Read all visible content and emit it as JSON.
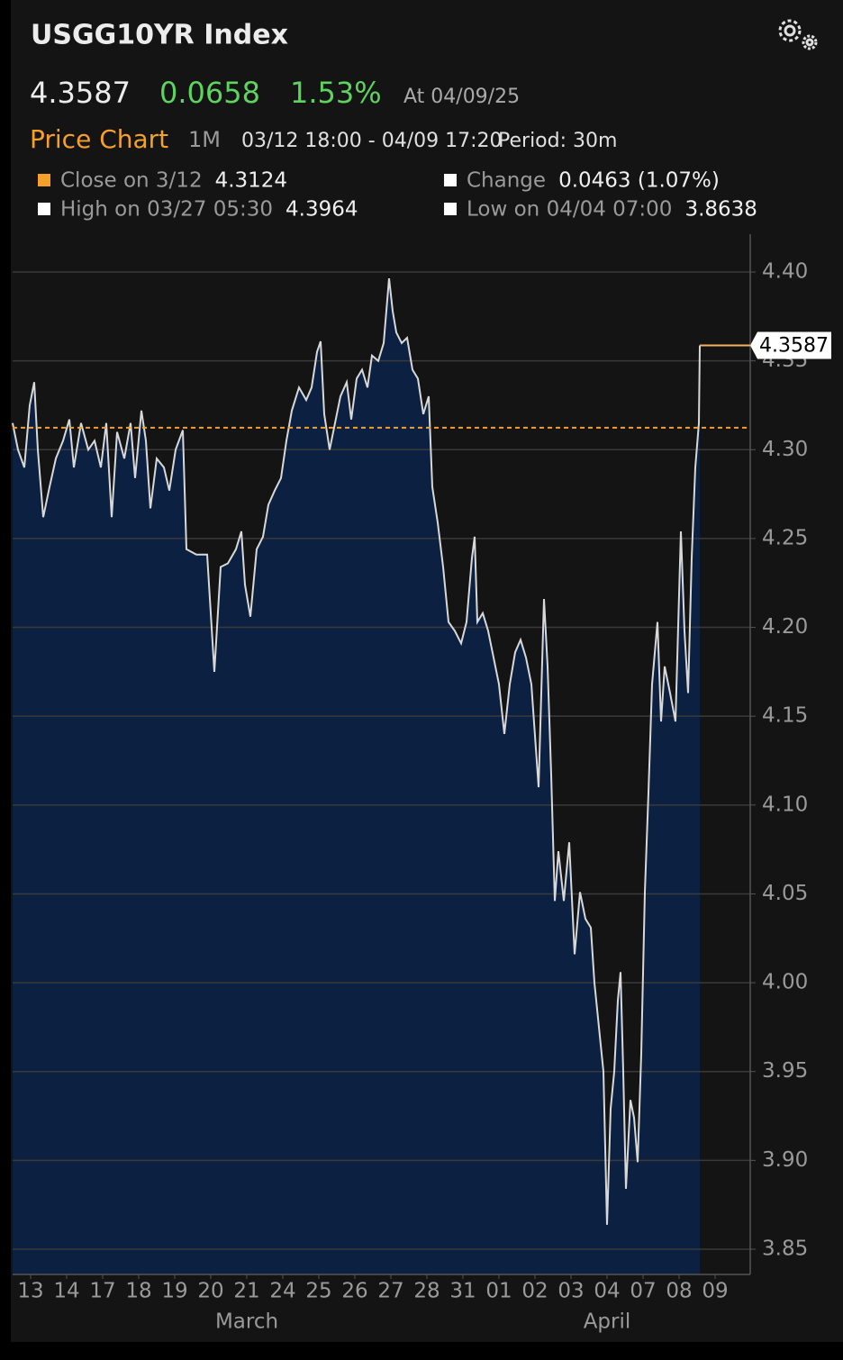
{
  "header": {
    "title": "USGG10YR Index",
    "last": 4.3587,
    "change": 0.0658,
    "change_pct": "1.53%",
    "as_of": "At 04/09/25"
  },
  "toolbar": {
    "label": "Price Chart",
    "range": "1M",
    "window": "03/12 18:00 - 04/09 17:20",
    "period": "Period: 30m"
  },
  "chart_data": {
    "type": "area",
    "color": "#d8d8d8",
    "fill": "#0c2142",
    "x": [
      -0.5,
      -0.35,
      -0.175,
      -0.025,
      0.1,
      0.2,
      0.35,
      0.525,
      0.7,
      0.9,
      1.075,
      1.2,
      1.4,
      1.6,
      1.775,
      1.95,
      2.1,
      2.25,
      2.4,
      2.6,
      2.775,
      2.9,
      3.075,
      3.2,
      3.325,
      3.5,
      3.7,
      3.85,
      4.025,
      4.225,
      4.325,
      4.6,
      4.9,
      5.0,
      5.1,
      5.275,
      5.475,
      5.7,
      5.85,
      5.95,
      6.1,
      6.275,
      6.45,
      6.6,
      6.775,
      6.95,
      7.1,
      7.25,
      7.45,
      7.65,
      7.8,
      7.95,
      8.05,
      8.15,
      8.3,
      8.45,
      8.6,
      8.775,
      8.9,
      9.05,
      9.2,
      9.35,
      9.475,
      9.65,
      9.8,
      9.95,
      10.05,
      10.15,
      10.3,
      10.45,
      10.6,
      10.75,
      10.9,
      11.05,
      11.15,
      11.3,
      11.45,
      11.6,
      11.775,
      11.95,
      12.1,
      12.25,
      12.325,
      12.4,
      12.55,
      12.7,
      12.85,
      13.0,
      13.15,
      13.3,
      13.45,
      13.6,
      13.75,
      13.9,
      14.1,
      14.25,
      14.35,
      14.45,
      14.55,
      14.65,
      14.8,
      14.95,
      15.1,
      15.25,
      15.4,
      15.55,
      15.65,
      15.775,
      15.9,
      16.0,
      16.1,
      16.2,
      16.3,
      16.375,
      16.45,
      16.525,
      16.65,
      16.75,
      16.85,
      16.95,
      17.05,
      17.15,
      17.25,
      17.4,
      17.5,
      17.6,
      17.75,
      17.9,
      18.05,
      18.15,
      18.25,
      18.35,
      18.45,
      18.55,
      18.575
    ],
    "values": [
      4.315,
      4.3,
      4.29,
      4.325,
      4.338,
      4.3,
      4.262,
      4.279,
      4.295,
      4.305,
      4.317,
      4.29,
      4.315,
      4.3,
      4.305,
      4.29,
      4.315,
      4.262,
      4.31,
      4.295,
      4.315,
      4.284,
      4.322,
      4.305,
      4.267,
      4.295,
      4.29,
      4.277,
      4.3,
      4.311,
      4.244,
      4.241,
      4.241,
      4.208,
      4.175,
      4.234,
      4.236,
      4.244,
      4.254,
      4.224,
      4.206,
      4.244,
      4.251,
      4.269,
      4.277,
      4.284,
      4.305,
      4.322,
      4.335,
      4.328,
      4.335,
      4.355,
      4.361,
      4.32,
      4.3,
      4.315,
      4.33,
      4.338,
      4.317,
      4.34,
      4.345,
      4.335,
      4.353,
      4.35,
      4.36,
      4.3964,
      4.378,
      4.366,
      4.36,
      4.363,
      4.345,
      4.34,
      4.32,
      4.33,
      4.279,
      4.259,
      4.234,
      4.203,
      4.198,
      4.191,
      4.203,
      4.239,
      4.251,
      4.203,
      4.208,
      4.198,
      4.183,
      4.168,
      4.14,
      4.168,
      4.186,
      4.193,
      4.183,
      4.168,
      4.11,
      4.216,
      4.178,
      4.117,
      4.046,
      4.074,
      4.046,
      4.079,
      4.016,
      4.051,
      4.036,
      4.031,
      4.0,
      3.975,
      3.95,
      3.8638,
      3.929,
      3.95,
      3.99,
      4.006,
      3.95,
      3.884,
      3.934,
      3.924,
      3.899,
      3.96,
      4.051,
      4.107,
      4.168,
      4.203,
      4.147,
      4.178,
      4.163,
      4.147,
      4.254,
      4.198,
      4.163,
      4.239,
      4.29,
      4.315,
      4.3587
    ],
    "xlim": [
      -0.5,
      19.975
    ],
    "xticks": [
      {
        "value": 0,
        "label": "13"
      },
      {
        "value": 1,
        "label": "14"
      },
      {
        "value": 2,
        "label": "17"
      },
      {
        "value": 3,
        "label": "18"
      },
      {
        "value": 4,
        "label": "19"
      },
      {
        "value": 5,
        "label": "20"
      },
      {
        "value": 6,
        "label": "21"
      },
      {
        "value": 7,
        "label": "24"
      },
      {
        "value": 8,
        "label": "25"
      },
      {
        "value": 9,
        "label": "26"
      },
      {
        "value": 10,
        "label": "27"
      },
      {
        "value": 11,
        "label": "28"
      },
      {
        "value": 12,
        "label": "31"
      },
      {
        "value": 13,
        "label": "01"
      },
      {
        "value": 14,
        "label": "02"
      },
      {
        "value": 15,
        "label": "03"
      },
      {
        "value": 16,
        "label": "04"
      },
      {
        "value": 17,
        "label": "07"
      },
      {
        "value": 18,
        "label": "08"
      },
      {
        "value": 19,
        "label": "09"
      }
    ],
    "groups": [
      {
        "label": "March",
        "from": 0,
        "to": 12
      },
      {
        "label": "April",
        "from": 13,
        "to": 19
      }
    ],
    "ylim": [
      3.8358,
      4.4213
    ],
    "yticks": [
      {
        "value": 3.85,
        "label": "3.85"
      },
      {
        "value": 3.9,
        "label": "3.90"
      },
      {
        "value": 3.95,
        "label": "3.95"
      },
      {
        "value": 4.0,
        "label": "4.00"
      },
      {
        "value": 4.05,
        "label": "4.05"
      },
      {
        "value": 4.1,
        "label": "4.10"
      },
      {
        "value": 4.15,
        "label": "4.15"
      },
      {
        "value": 4.2,
        "label": "4.20"
      },
      {
        "value": 4.25,
        "label": "4.25"
      },
      {
        "value": 4.3,
        "label": "4.30"
      },
      {
        "value": 4.35,
        "label": "4.35"
      },
      {
        "value": 4.4,
        "label": "4.40"
      }
    ],
    "grid": true,
    "reference_line": {
      "label": "Close on 3/12",
      "value": 4.3124,
      "color": "#f5a02a"
    },
    "stats": [
      {
        "label": "Close on 3/12",
        "value": 4.3124,
        "color": "#f5a02a"
      },
      {
        "label": "Change",
        "value": "0.0463 (1.07%)",
        "color": "#ffffff"
      },
      {
        "label": "High on 03/27 05:30",
        "value": 4.3964,
        "color": "#ffffff"
      },
      {
        "label": "Low on 04/04 07:00",
        "value": 3.8638,
        "color": "#ffffff"
      }
    ]
  }
}
